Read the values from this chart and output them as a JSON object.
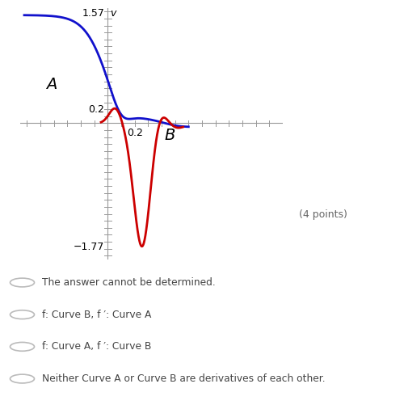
{
  "xlim": [
    -0.65,
    1.3
  ],
  "ylim": [
    -1.95,
    1.65
  ],
  "label_A": "A",
  "label_B": "B",
  "label_157": "1.57",
  "label_177": "−1.77",
  "label_02_y": "0.2",
  "label_02_x": "0.2",
  "label_v": "v",
  "curve_A_color": "#1111cc",
  "curve_B_color": "#cc0000",
  "bg_color": "#ffffff",
  "axis_color": "#999999",
  "text_color": "#333333",
  "choices": [
    "The answer cannot be determined.",
    "f: Curve B, f ′: Curve A",
    "f: Curve A, f ′: Curve B",
    "Neither Curve A or Curve B are derivatives of each other."
  ],
  "points_text": "(4 points)"
}
